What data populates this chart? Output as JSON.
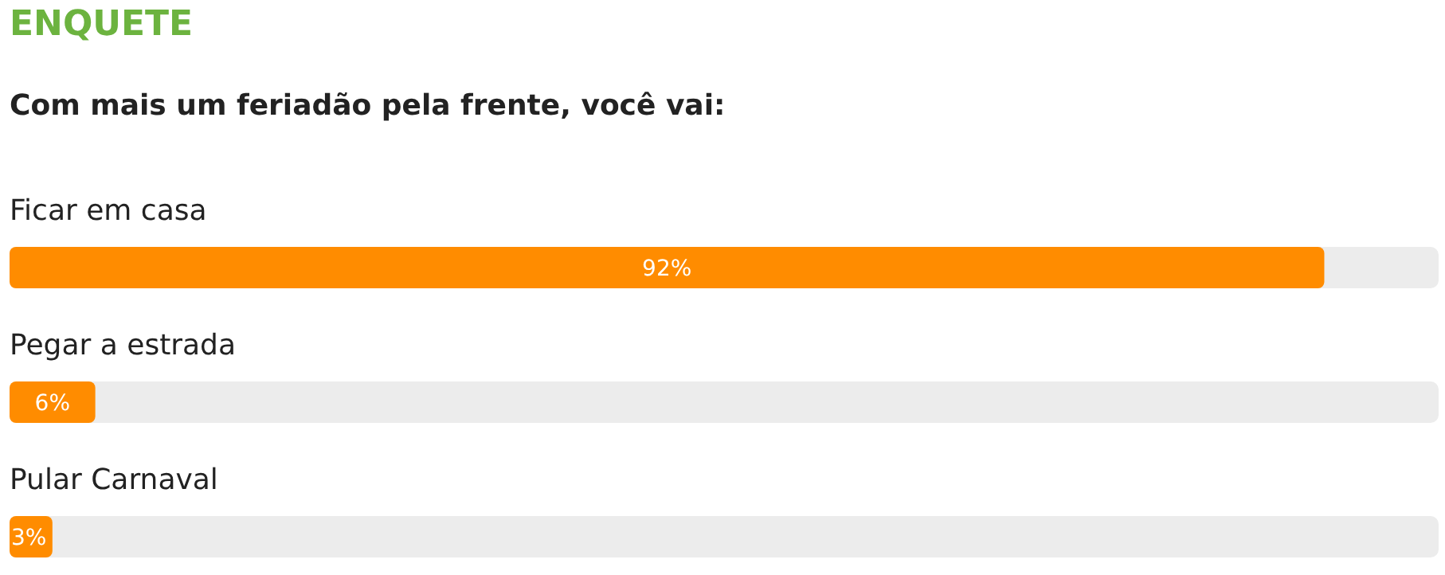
{
  "chart_data": {
    "type": "bar",
    "orientation": "horizontal",
    "title": "ENQUETE",
    "subtitle": "Com mais um feriadão pela frente, você vai:",
    "categories": [
      "Ficar em casa",
      "Pegar a estrada",
      "Pular Carnaval"
    ],
    "values": [
      92,
      6,
      3
    ],
    "value_labels": [
      "92%",
      "6%",
      "3%"
    ],
    "color": "#ff8c00",
    "xlim": [
      0,
      100
    ],
    "tick_labels": "y"
  }
}
